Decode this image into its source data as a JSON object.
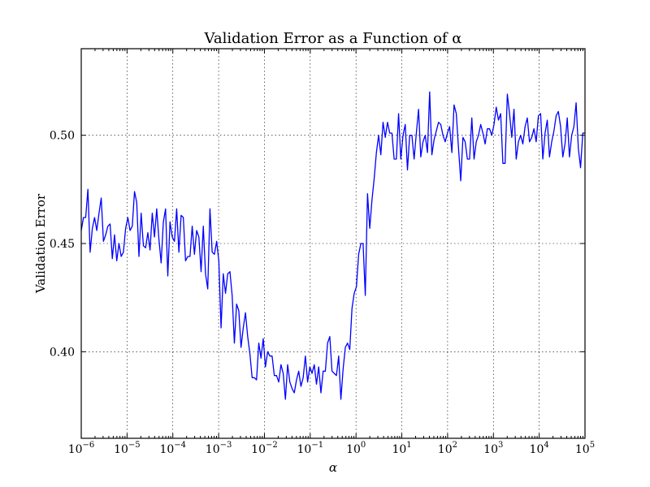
{
  "chart_data": {
    "type": "line",
    "title": "Validation Error as a Function of α",
    "xlabel": "α",
    "ylabel": "Validation Error",
    "x_scale": "log",
    "xlim": [
      1e-06,
      100000.0
    ],
    "ylim": [
      0.36,
      0.54
    ],
    "grid": true,
    "line_color": "#0000ff",
    "x_ticks": [
      {
        "base": "10",
        "exp": "−6"
      },
      {
        "base": "10",
        "exp": "−5"
      },
      {
        "base": "10",
        "exp": "−4"
      },
      {
        "base": "10",
        "exp": "−3"
      },
      {
        "base": "10",
        "exp": "−2"
      },
      {
        "base": "10",
        "exp": "−1"
      },
      {
        "base": "10",
        "exp": "0"
      },
      {
        "base": "10",
        "exp": "1"
      },
      {
        "base": "10",
        "exp": "2"
      },
      {
        "base": "10",
        "exp": "3"
      },
      {
        "base": "10",
        "exp": "4"
      },
      {
        "base": "10",
        "exp": "5"
      }
    ],
    "y_ticks": [
      "0.40",
      "0.45",
      "0.50"
    ],
    "series": [
      {
        "log10_x_start": -6,
        "log10_x_end": 5,
        "y": [
          0.456,
          0.462,
          0.462,
          0.475,
          0.446,
          0.457,
          0.462,
          0.456,
          0.464,
          0.471,
          0.451,
          0.454,
          0.458,
          0.459,
          0.443,
          0.454,
          0.442,
          0.45,
          0.444,
          0.446,
          0.457,
          0.462,
          0.456,
          0.458,
          0.474,
          0.469,
          0.444,
          0.464,
          0.449,
          0.448,
          0.455,
          0.447,
          0.464,
          0.453,
          0.466,
          0.452,
          0.441,
          0.46,
          0.466,
          0.435,
          0.46,
          0.453,
          0.451,
          0.466,
          0.446,
          0.463,
          0.462,
          0.442,
          0.444,
          0.444,
          0.458,
          0.445,
          0.456,
          0.453,
          0.437,
          0.458,
          0.436,
          0.429,
          0.466,
          0.446,
          0.445,
          0.451,
          0.442,
          0.411,
          0.436,
          0.427,
          0.436,
          0.437,
          0.426,
          0.404,
          0.422,
          0.419,
          0.402,
          0.411,
          0.418,
          0.407,
          0.399,
          0.388,
          0.388,
          0.387,
          0.404,
          0.397,
          0.406,
          0.393,
          0.4,
          0.398,
          0.398,
          0.389,
          0.389,
          0.386,
          0.394,
          0.39,
          0.378,
          0.394,
          0.386,
          0.383,
          0.381,
          0.387,
          0.391,
          0.384,
          0.388,
          0.398,
          0.386,
          0.393,
          0.39,
          0.394,
          0.385,
          0.393,
          0.381,
          0.391,
          0.391,
          0.404,
          0.407,
          0.391,
          0.39,
          0.389,
          0.398,
          0.378,
          0.392,
          0.402,
          0.404,
          0.401,
          0.42,
          0.427,
          0.43,
          0.445,
          0.45,
          0.45,
          0.426,
          0.473,
          0.457,
          0.47,
          0.48,
          0.492,
          0.5,
          0.491,
          0.506,
          0.499,
          0.506,
          0.501,
          0.501,
          0.489,
          0.489,
          0.51,
          0.489,
          0.5,
          0.505,
          0.484,
          0.5,
          0.5,
          0.489,
          0.501,
          0.512,
          0.49,
          0.497,
          0.5,
          0.492,
          0.52,
          0.491,
          0.498,
          0.502,
          0.506,
          0.505,
          0.5,
          0.497,
          0.501,
          0.504,
          0.492,
          0.514,
          0.51,
          0.494,
          0.479,
          0.499,
          0.497,
          0.489,
          0.489,
          0.508,
          0.489,
          0.497,
          0.5,
          0.505,
          0.501,
          0.496,
          0.503,
          0.503,
          0.5,
          0.505,
          0.513,
          0.507,
          0.51,
          0.487,
          0.487,
          0.519,
          0.51,
          0.499,
          0.512,
          0.489,
          0.497,
          0.5,
          0.496,
          0.504,
          0.508,
          0.497,
          0.499,
          0.503,
          0.497,
          0.509,
          0.51,
          0.489,
          0.501,
          0.507,
          0.49,
          0.497,
          0.502,
          0.509,
          0.511,
          0.504,
          0.49,
          0.496,
          0.508,
          0.49,
          0.5,
          0.504,
          0.515,
          0.494,
          0.485,
          0.501,
          0.501
        ]
      }
    ]
  }
}
